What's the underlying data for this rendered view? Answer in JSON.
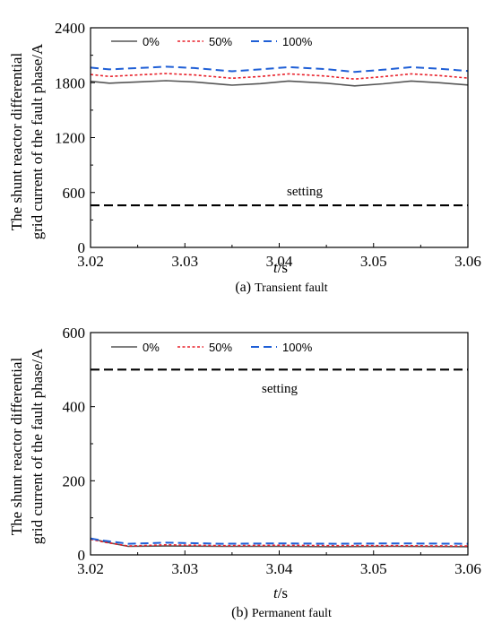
{
  "series_styles": [
    {
      "color": "#555555",
      "dash": "",
      "width": 1.6
    },
    {
      "color": "#e8202a",
      "dash": "3,2.5",
      "width": 1.6
    },
    {
      "color": "#1f5fd6",
      "dash": "9,5",
      "width": 2.0
    }
  ],
  "setting_color": "#000000",
  "chart_data": [
    {
      "type": "line",
      "caption_prefix": "(a)",
      "caption_text": "Transient fault",
      "ylabel_line1": "The shunt reactor differential",
      "ylabel_line2": "grid current of the fault phase/A",
      "xlabel_italic": "t",
      "xlabel_unit": "/s",
      "xlim": [
        3.02,
        3.06
      ],
      "ylim": [
        0,
        2400
      ],
      "xticks": [
        "3.02",
        "3.03",
        "3.04",
        "3.05",
        "3.06"
      ],
      "yticks": [
        "0",
        "600",
        "1200",
        "1800",
        "2400"
      ],
      "legend": [
        "0%",
        "50%",
        "100%"
      ],
      "legend_position": "top-left",
      "setting_label": "setting",
      "setting_value": 460,
      "series": [
        {
          "name": "0%",
          "x": [
            3.02,
            3.022,
            3.025,
            3.028,
            3.031,
            3.035,
            3.038,
            3.041,
            3.045,
            3.048,
            3.051,
            3.054,
            3.057,
            3.06
          ],
          "values": [
            1815,
            1795,
            1808,
            1822,
            1808,
            1773,
            1790,
            1818,
            1795,
            1765,
            1788,
            1818,
            1800,
            1775
          ]
        },
        {
          "name": "50%",
          "x": [
            3.02,
            3.022,
            3.025,
            3.028,
            3.031,
            3.035,
            3.038,
            3.041,
            3.045,
            3.048,
            3.051,
            3.054,
            3.057,
            3.06
          ],
          "values": [
            1890,
            1868,
            1885,
            1900,
            1885,
            1848,
            1868,
            1896,
            1872,
            1840,
            1866,
            1896,
            1878,
            1850
          ]
        },
        {
          "name": "100%",
          "x": [
            3.02,
            3.022,
            3.025,
            3.028,
            3.031,
            3.035,
            3.038,
            3.041,
            3.045,
            3.048,
            3.051,
            3.054,
            3.057,
            3.06
          ],
          "values": [
            1965,
            1945,
            1960,
            1975,
            1960,
            1925,
            1945,
            1970,
            1948,
            1918,
            1942,
            1970,
            1952,
            1928
          ]
        }
      ]
    },
    {
      "type": "line",
      "caption_prefix": "(b)",
      "caption_text": "Permanent fault",
      "ylabel_line1": "The shunt reactor differential",
      "ylabel_line2": "grid current of the fault phase/A",
      "xlabel_italic": "t",
      "xlabel_unit": "/s",
      "xlim": [
        3.02,
        3.06
      ],
      "ylim": [
        0,
        600
      ],
      "xticks": [
        "3.02",
        "3.03",
        "3.04",
        "3.05",
        "3.06"
      ],
      "yticks": [
        "0",
        "200",
        "400",
        "600"
      ],
      "legend": [
        "0%",
        "50%",
        "100%"
      ],
      "legend_position": "top-left",
      "setting_label": "setting",
      "setting_value": 500,
      "series": [
        {
          "name": "0%",
          "x": [
            3.02,
            3.0215,
            3.024,
            3.028,
            3.034,
            3.04,
            3.046,
            3.052,
            3.06
          ],
          "values": [
            45,
            35,
            23,
            24,
            23,
            23,
            22,
            23,
            22
          ]
        },
        {
          "name": "50%",
          "x": [
            3.02,
            3.0215,
            3.024,
            3.028,
            3.034,
            3.04,
            3.046,
            3.052,
            3.06
          ],
          "values": [
            42,
            34,
            24,
            27,
            25,
            26,
            25,
            25,
            24
          ]
        },
        {
          "name": "100%",
          "x": [
            3.02,
            3.0215,
            3.024,
            3.028,
            3.034,
            3.04,
            3.046,
            3.052,
            3.06
          ],
          "values": [
            44,
            38,
            30,
            33,
            30,
            31,
            30,
            31,
            30
          ]
        }
      ]
    }
  ]
}
